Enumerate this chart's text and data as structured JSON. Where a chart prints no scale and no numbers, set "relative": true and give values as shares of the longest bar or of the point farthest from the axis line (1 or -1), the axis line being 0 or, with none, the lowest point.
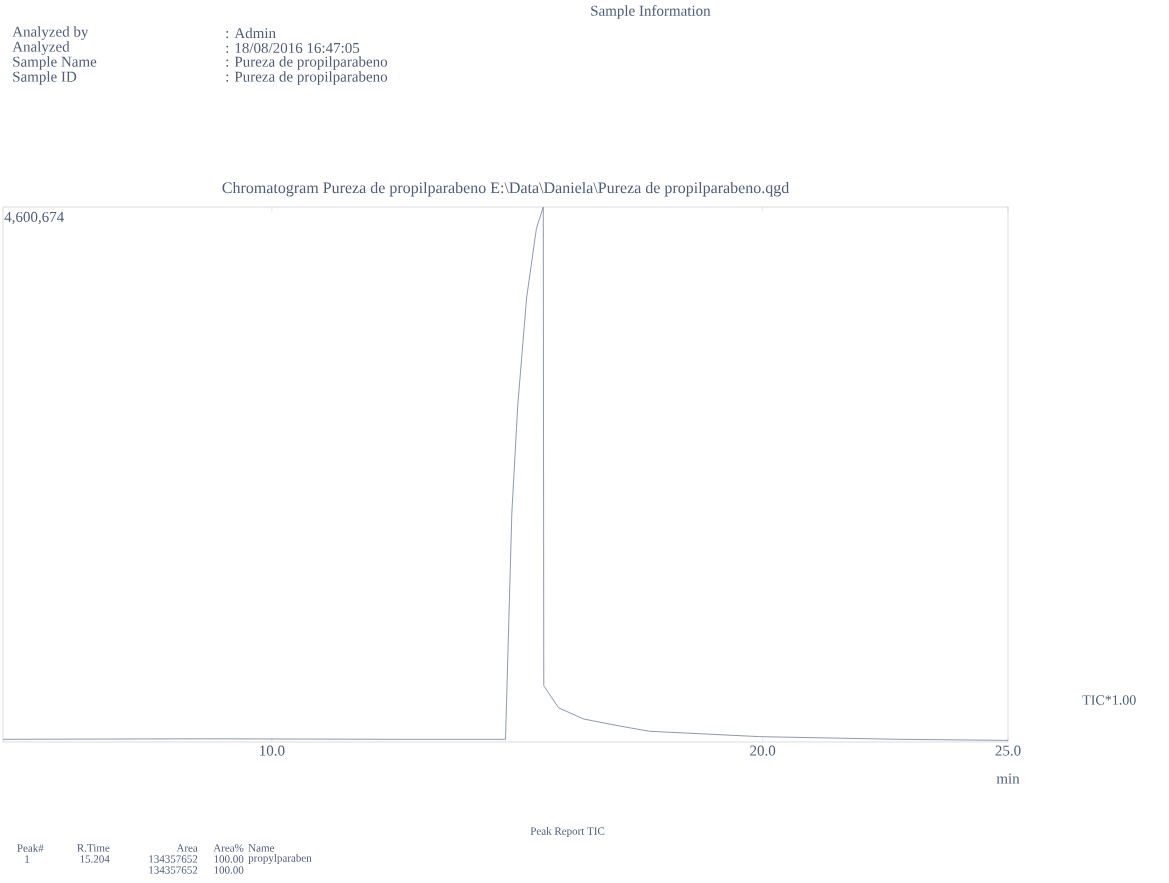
{
  "chart_data": {
    "type": "line",
    "relative": true,
    "title": "Chromatogram Pureza de propilparabeno E:\\Data\\Daniela\\Pureza de propilparabeno.qgd",
    "xlabel": "min",
    "x": [
      4.52,
      8.58,
      12.63,
      14.76,
      14.89,
      15.01,
      15.19,
      15.39,
      15.53,
      15.54,
      15.84,
      16.35,
      17.08,
      17.7,
      19.94,
      22.78,
      25.0
    ],
    "series": [
      {
        "color": "#7f8fa6",
        "values": [
          0.005,
          0.006,
          0.005,
          0.005,
          0.43,
          0.63,
          0.83,
          0.96,
          1.0,
          0.105,
          0.064,
          0.043,
          0.03,
          0.02,
          0.01,
          0.005,
          0.003
        ]
      }
    ],
    "xlim": [
      4.52,
      25.0
    ],
    "xticks": [
      {
        "value": 10,
        "label": "10.0"
      },
      {
        "value": 20,
        "label": "20.0"
      },
      {
        "value": 25,
        "label": "25.0"
      }
    ],
    "tick_labels": "x",
    "marker": "none",
    "line_style": "solid",
    "annotations": [
      "Sample Information",
      "Analyzed by",
      ": Admin",
      "Analyzed",
      ": 18/08/2016 16:47:05",
      "Sample Name",
      ": Pureza de propilparabeno",
      "Sample ID",
      ": Pureza de propilparabeno",
      "4,600,674",
      "TIC*1.00",
      "Peak Report TIC",
      "Peak#",
      "R.Time",
      "Area",
      "Area%",
      "Name",
      "1",
      "15.204",
      "134357652",
      "100.00",
      "propylparaben",
      "134357652",
      "100.00"
    ]
  }
}
